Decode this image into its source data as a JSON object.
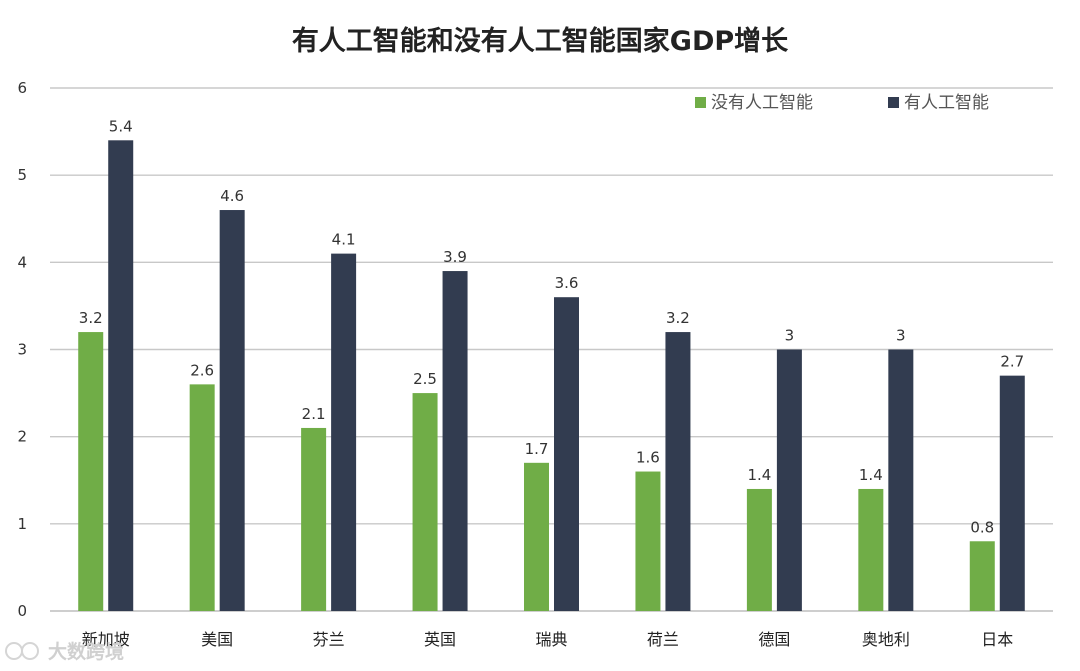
{
  "chart_data": {
    "type": "bar",
    "title": "有人工智能和没有人工智能国家GDP增长",
    "categories": [
      "新加坡",
      "美国",
      "芬兰",
      "英国",
      "瑞典",
      "荷兰",
      "德国",
      "奥地利",
      "日本"
    ],
    "series": [
      {
        "name": "没有人工智能",
        "color": "#70ad47",
        "values": [
          3.2,
          2.6,
          2.1,
          2.5,
          1.7,
          1.6,
          1.4,
          1.4,
          0.8
        ]
      },
      {
        "name": "有人工智能",
        "color": "#323c50",
        "values": [
          5.4,
          4.6,
          4.1,
          3.9,
          3.6,
          3.2,
          3,
          3,
          2.7
        ]
      }
    ],
    "ylim": [
      0,
      6
    ],
    "yticks": [
      0,
      1,
      2,
      3,
      4,
      5,
      6
    ],
    "grid": true,
    "legend_position": "top-right",
    "xlabel": "",
    "ylabel": ""
  },
  "watermark": "大数跨境"
}
